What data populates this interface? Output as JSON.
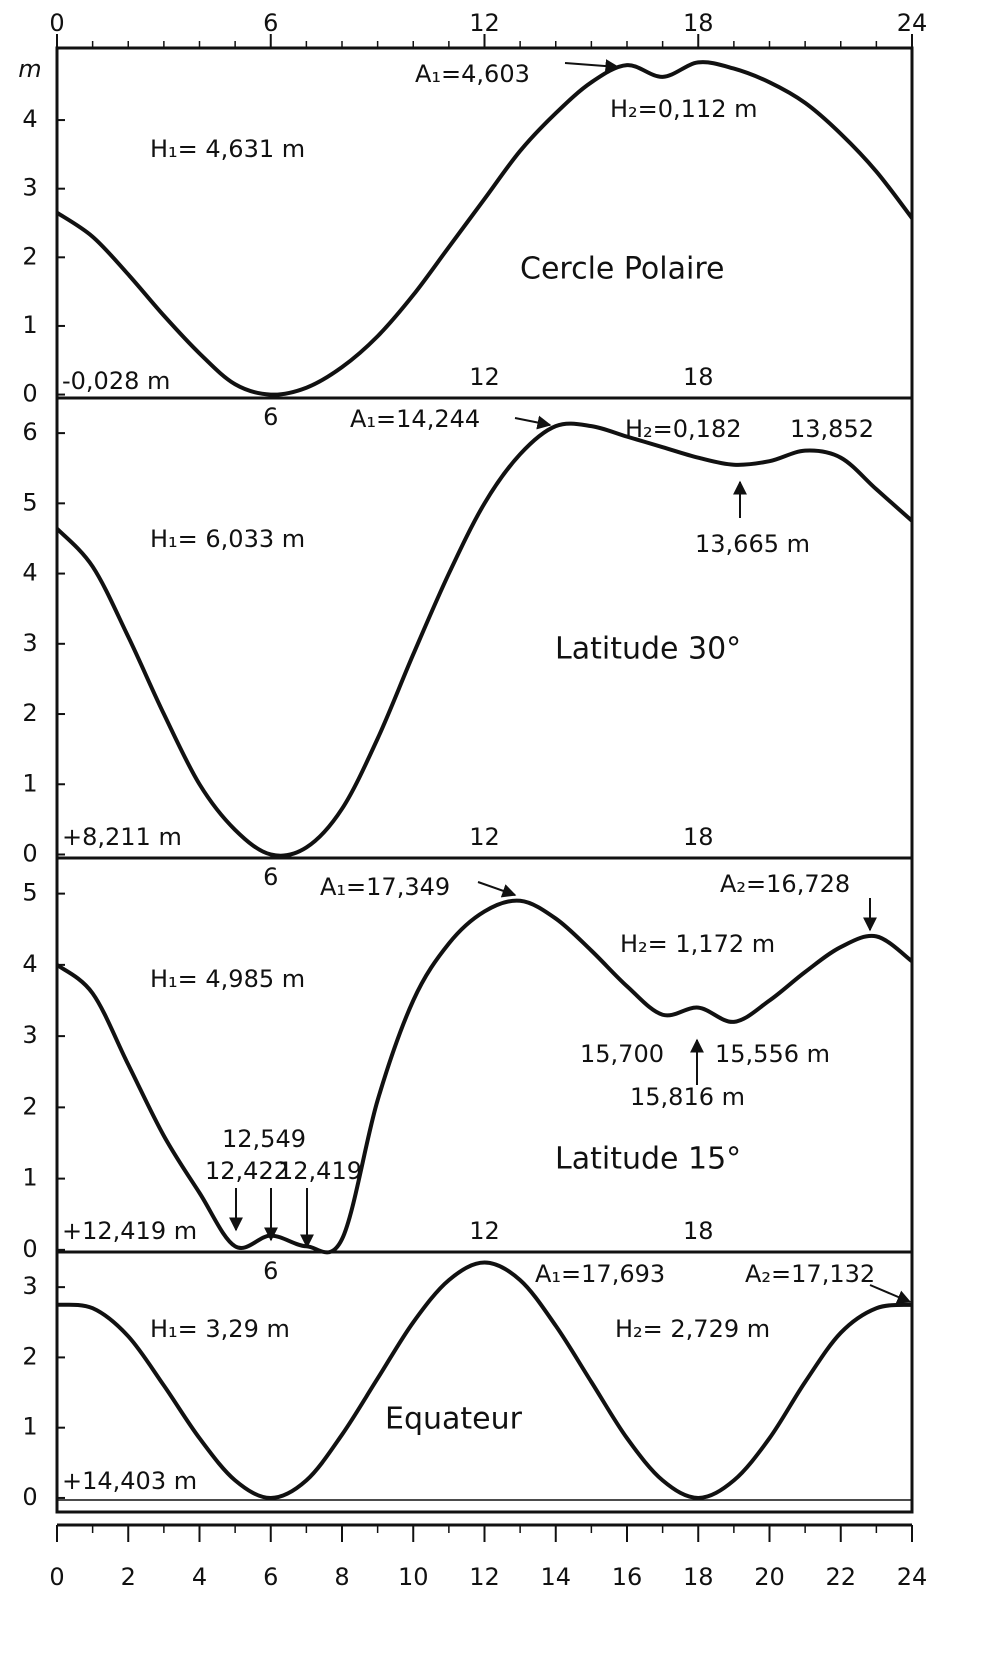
{
  "chart_data": [
    {
      "type": "line",
      "label": "Cercle Polaire",
      "color": "#111111",
      "y_unit": "m",
      "xlim": [
        0,
        24
      ],
      "xticks_top": [
        0,
        6,
        12,
        18,
        24
      ],
      "ylim": [
        -0.05,
        5.05
      ],
      "yticks": [
        0,
        1,
        2,
        3,
        4
      ],
      "markers_bottom": [
        12,
        18
      ],
      "annotations": [
        "H₁= 4,631 m",
        "A₁=4,603",
        "H₂=0,112 m",
        "-0,028 m"
      ],
      "x": [
        0,
        1,
        2,
        3,
        4,
        5,
        6,
        7,
        8,
        9,
        10,
        11,
        12,
        13,
        14,
        15,
        16,
        17,
        18,
        19,
        20,
        21,
        22,
        23,
        24
      ],
      "values": [
        2.65,
        2.3,
        1.75,
        1.15,
        0.6,
        0.15,
        0,
        0.1,
        0.4,
        0.85,
        1.45,
        2.15,
        2.85,
        3.55,
        4.1,
        4.55,
        4.8,
        4.63,
        4.84,
        4.75,
        4.55,
        4.25,
        3.8,
        3.25,
        2.57
      ]
    },
    {
      "type": "line",
      "label": "Latitude 30°",
      "color": "#111111",
      "xlim": [
        0,
        24
      ],
      "ylim": [
        -0.05,
        6.5
      ],
      "yticks": [
        0,
        1,
        2,
        3,
        4,
        5,
        6
      ],
      "markers_top": [
        6
      ],
      "markers_bottom": [
        12,
        18
      ],
      "annotations": [
        "A₁=14,244",
        "H₂=0,182",
        "13,852",
        "H₁= 6,033 m",
        "13,665 m",
        "+8,211 m"
      ],
      "x": [
        0,
        1,
        2,
        3,
        4,
        5,
        6,
        7,
        8,
        9,
        10,
        11,
        12,
        13,
        14,
        15,
        16,
        17,
        18,
        19,
        20,
        21,
        22,
        23,
        24
      ],
      "values": [
        4.64,
        4.1,
        3.1,
        2.0,
        1.0,
        0.35,
        0,
        0.1,
        0.65,
        1.65,
        2.85,
        4.0,
        5.0,
        5.7,
        6.1,
        6.1,
        5.95,
        5.8,
        5.65,
        5.55,
        5.6,
        5.75,
        5.65,
        5.2,
        4.75
      ]
    },
    {
      "type": "line",
      "label": "Latitude 15°",
      "color": "#111111",
      "xlim": [
        0,
        24
      ],
      "ylim": [
        -0.03,
        5.5
      ],
      "yticks": [
        0,
        1,
        2,
        3,
        4,
        5
      ],
      "markers_top": [
        6
      ],
      "markers_bottom": [
        12,
        18
      ],
      "annotations": [
        "A₁=17,349",
        "A₂=16,728",
        "H₂= 1,172 m",
        "H₁= 4,985 m",
        "15,700",
        "15,556 m",
        "15,816 m",
        "12,549",
        "12,422",
        "12,419",
        "+12,419 m"
      ],
      "x": [
        0,
        1,
        2,
        3,
        4,
        5,
        6,
        7,
        8,
        9,
        10,
        11,
        12,
        13,
        14,
        15,
        16,
        17,
        18,
        19,
        20,
        21,
        22,
        23,
        24
      ],
      "values": [
        4.0,
        3.6,
        2.6,
        1.6,
        0.8,
        0.05,
        0.2,
        0.05,
        0.15,
        2.1,
        3.5,
        4.3,
        4.75,
        4.9,
        4.65,
        4.2,
        3.7,
        3.3,
        3.4,
        3.2,
        3.5,
        3.9,
        4.25,
        4.4,
        4.05
      ]
    },
    {
      "type": "line",
      "label": "Equateur",
      "color": "#111111",
      "xlim": [
        0,
        24
      ],
      "ylim": [
        -0.2,
        3.5
      ],
      "yticks": [
        0,
        1,
        2,
        3
      ],
      "xticks": [
        0,
        2,
        4,
        6,
        8,
        10,
        12,
        14,
        16,
        18,
        20,
        22,
        24
      ],
      "markers_top": [
        6
      ],
      "annotations": [
        "A₁=17,693",
        "A₂=17,132",
        "H₁= 3,29 m",
        "H₂= 2,729 m",
        "+14,403 m"
      ],
      "x": [
        0,
        1,
        2,
        3,
        4,
        5,
        6,
        7,
        8,
        9,
        10,
        11,
        12,
        13,
        14,
        15,
        16,
        17,
        18,
        19,
        20,
        21,
        22,
        23,
        24
      ],
      "values": [
        2.75,
        2.7,
        2.3,
        1.6,
        0.85,
        0.25,
        0,
        0.25,
        0.9,
        1.7,
        2.5,
        3.1,
        3.35,
        3.1,
        2.45,
        1.65,
        0.85,
        0.25,
        0,
        0.25,
        0.85,
        1.65,
        2.35,
        2.7,
        2.75
      ]
    }
  ]
}
